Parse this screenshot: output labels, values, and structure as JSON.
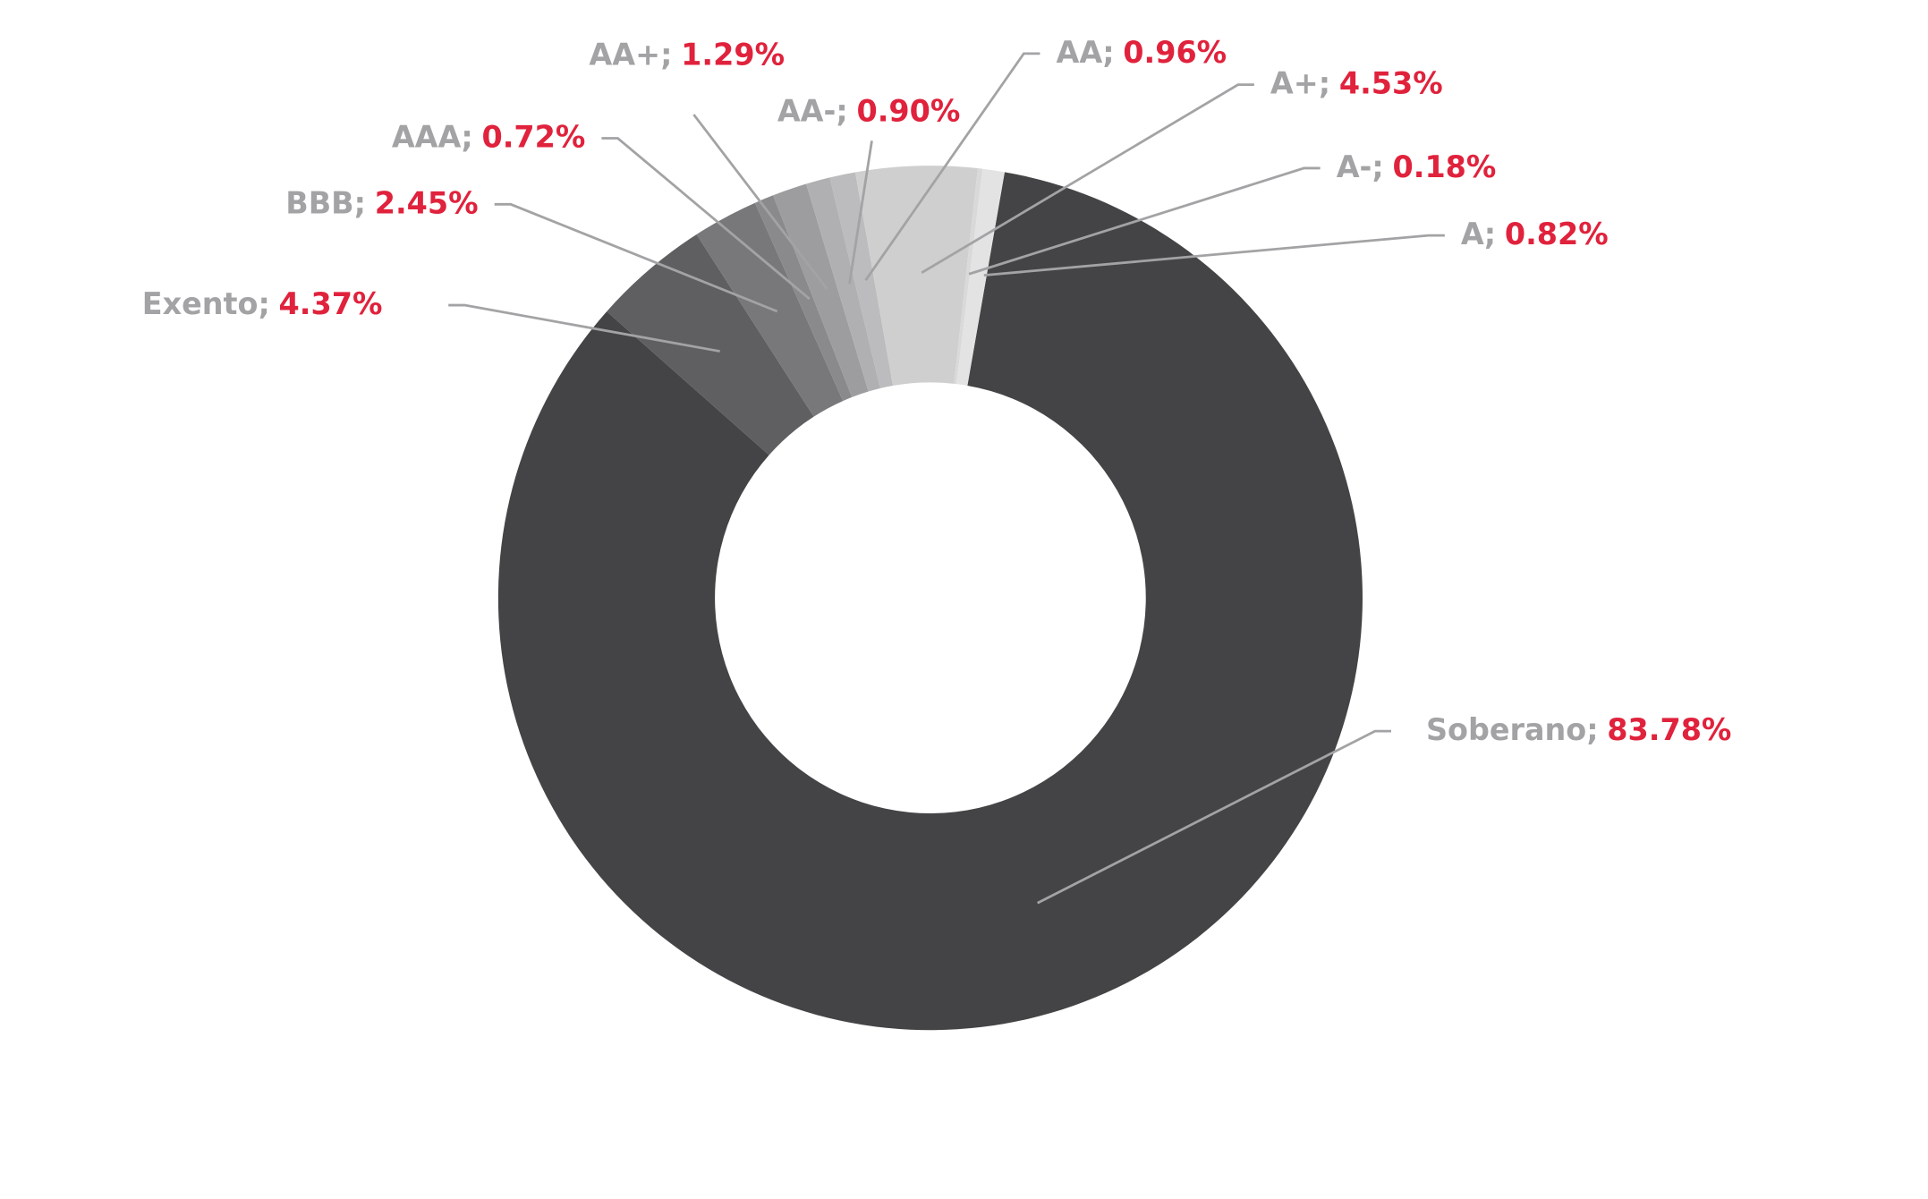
{
  "chart_data": {
    "type": "donut",
    "categories": [
      "Soberano",
      "Exento",
      "BBB",
      "AAA",
      "AA+",
      "AA-",
      "AA",
      "A+",
      "A-",
      "A"
    ],
    "values": [
      83.78,
      4.37,
      2.45,
      0.72,
      1.29,
      0.9,
      0.96,
      4.53,
      0.18,
      0.82
    ],
    "value_labels": [
      "83.78%",
      "4.37%",
      "2.45%",
      "0.72%",
      "1.29%",
      "0.90%",
      "0.96%",
      "4.53%",
      "0.18%",
      "0.82%"
    ],
    "label_separator": ";",
    "colors": [
      "#444446",
      "#5f5f61",
      "#78787a",
      "#8a8a8c",
      "#9d9d9f",
      "#b0b0b2",
      "#bcbcbe",
      "#cfcfcf",
      "#d9d9d9",
      "#e3e3e3"
    ]
  }
}
